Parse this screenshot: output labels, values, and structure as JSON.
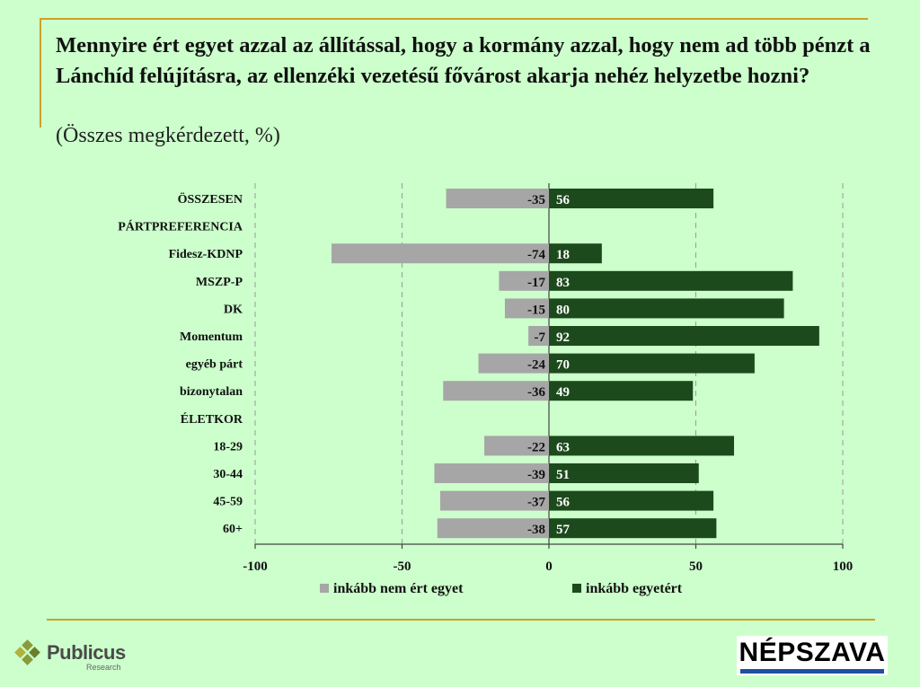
{
  "title": "Mennyire ért egyet azzal az állítással, hogy a kormány azzal, hogy nem ad több pénzt a Lánchíd felújításra, az ellenzéki vezetésű fővárost akarja nehéz helyzetbe hozni?",
  "subtitle": "(Összes megkérdezett, %)",
  "colors": {
    "negative": "#a6a6a6",
    "positive": "#1d4a1d",
    "frame": "#c9a227",
    "background": "#ccffcc"
  },
  "chart_data": {
    "type": "bar",
    "orientation": "horizontal-diverging",
    "rows": [
      {
        "label": "ÖSSZESEN",
        "kind": "row",
        "negative": -35,
        "positive": 56
      },
      {
        "label": "PÁRTPREFERENCIA",
        "kind": "header"
      },
      {
        "label": "Fidesz-KDNP",
        "kind": "row",
        "negative": -74,
        "positive": 18
      },
      {
        "label": "MSZP-P",
        "kind": "row",
        "negative": -17,
        "positive": 83
      },
      {
        "label": "DK",
        "kind": "row",
        "negative": -15,
        "positive": 80
      },
      {
        "label": "Momentum",
        "kind": "row",
        "negative": -7,
        "positive": 92
      },
      {
        "label": "egyéb párt",
        "kind": "row",
        "negative": -24,
        "positive": 70
      },
      {
        "label": "bizonytalan",
        "kind": "row",
        "negative": -36,
        "positive": 49
      },
      {
        "label": "ÉLETKOR",
        "kind": "header"
      },
      {
        "label": "18-29",
        "kind": "row",
        "negative": -22,
        "positive": 63
      },
      {
        "label": "30-44",
        "kind": "row",
        "negative": -39,
        "positive": 51
      },
      {
        "label": "45-59",
        "kind": "row",
        "negative": -37,
        "positive": 56
      },
      {
        "label": "60+",
        "kind": "row",
        "negative": -38,
        "positive": 57
      }
    ],
    "series": [
      {
        "name": "inkább nem ért egyet",
        "key": "negative"
      },
      {
        "name": "inkább egyetért",
        "key": "positive"
      }
    ],
    "xlim": [
      -100,
      100
    ],
    "xticks": [
      "-100",
      "-50",
      "0",
      "50",
      "100"
    ],
    "xtick_values": [
      -100,
      -50,
      0,
      50,
      100
    ],
    "grid": "vertical dashed at ticks",
    "legend": "bottom-center"
  },
  "logos": {
    "publicus": {
      "name": "Publicus",
      "sub": "Research",
      "icon": "diamond-grid-icon"
    },
    "nepszava": {
      "name": "NÉPSZAVA"
    }
  }
}
